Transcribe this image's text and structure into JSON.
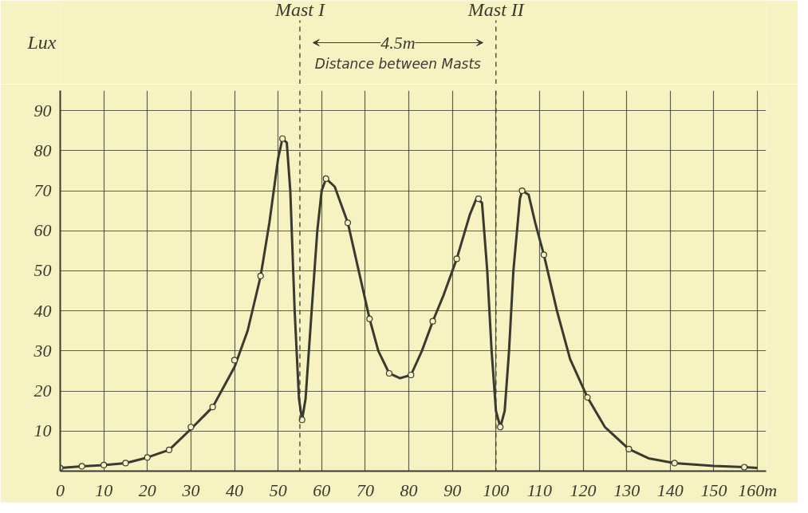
{
  "chart_data": {
    "type": "line",
    "ylabel": "Lux",
    "xlim": [
      0,
      162
    ],
    "ylim": [
      0,
      95
    ],
    "xticks": [
      0,
      10,
      20,
      30,
      40,
      50,
      60,
      70,
      80,
      90,
      100,
      110,
      120,
      130,
      140,
      {
        "value": 160,
        "label": "160m"
      },
      150
    ],
    "yticks": [
      10,
      20,
      30,
      40,
      50,
      60,
      70,
      80,
      90
    ],
    "grid": true,
    "line_style": "solid",
    "series": [
      {
        "color": "#3a3a30",
        "x": [
          0,
          5,
          10,
          15,
          20,
          25,
          30,
          35,
          40,
          43,
          46,
          48,
          50,
          51,
          52,
          52.8,
          53.8,
          54.8,
          55.5,
          56.3,
          57.7,
          59,
          60,
          61,
          63,
          66,
          68.5,
          71,
          73,
          75.5,
          78,
          80.5,
          83,
          85.5,
          88,
          91,
          94,
          95.5,
          96.8,
          98,
          99,
          100,
          101,
          102,
          103,
          104,
          105.5,
          106,
          107.5,
          109,
          111,
          114,
          117,
          121,
          125,
          130.5,
          135,
          141,
          150,
          157,
          160
        ],
        "values": [
          0.8,
          1.2,
          1.5,
          2,
          3.4,
          5.3,
          10.5,
          16,
          26,
          35,
          48.7,
          62,
          78,
          83,
          82,
          70,
          40,
          18,
          12.8,
          18,
          40,
          60,
          70,
          73,
          71,
          62,
          50,
          38,
          30,
          24.4,
          23.2,
          24,
          30,
          37.4,
          44,
          53,
          64,
          68,
          67,
          50,
          30,
          15,
          11,
          15,
          30,
          50,
          68,
          70,
          69,
          62,
          54,
          40,
          28,
          18.4,
          11,
          5.5,
          3.2,
          2,
          1.3,
          1,
          0.8
        ]
      },
      {
        "type": "scatter",
        "color": "#3a3a30",
        "marker": "circle",
        "x": [
          0,
          5,
          10,
          15,
          20,
          25,
          30,
          35,
          40,
          46,
          51,
          55.5,
          61,
          66,
          71,
          75.5,
          80.5,
          85.5,
          91,
          96,
          101,
          106,
          111,
          121,
          130.5,
          141,
          157
        ],
        "values": [
          0.8,
          1.2,
          1.5,
          2,
          3.4,
          5.3,
          11,
          16,
          27.7,
          48.7,
          83,
          12.8,
          73,
          62,
          38,
          24.4,
          24,
          37.4,
          53,
          68,
          11,
          70,
          54,
          18.4,
          5.5,
          2,
          1
        ]
      }
    ],
    "ref_lines": [
      {
        "axis": "x",
        "value": 55,
        "label": "Mast I",
        "line_style": "dashed",
        "color": "#3a3a30"
      },
      {
        "axis": "x",
        "value": 100,
        "label": "Mast II",
        "line_style": "dashed",
        "color": "#3a3a30"
      }
    ],
    "annotations": [
      "4.5m",
      "Distance between Masts"
    ]
  }
}
